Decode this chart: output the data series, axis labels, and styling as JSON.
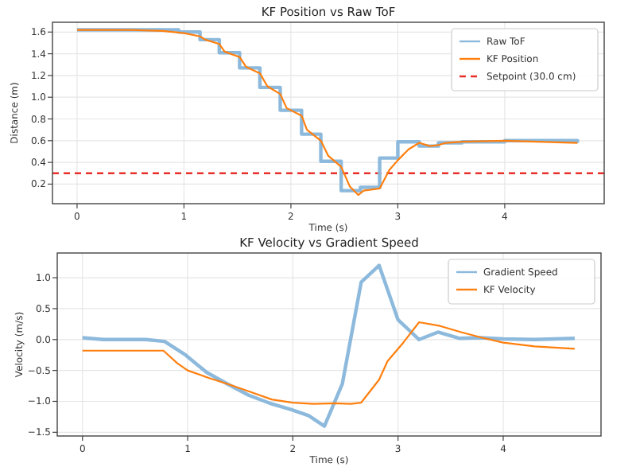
{
  "chart_data": [
    {
      "type": "line",
      "title": "KF Position vs Raw ToF",
      "xlabel": "Time (s)",
      "ylabel": "Distance (m)",
      "xlim": [
        -0.23,
        4.93
      ],
      "ylim": [
        0.02,
        1.69
      ],
      "xticks": [
        0,
        1,
        2,
        3,
        4
      ],
      "yticks": [
        {
          "value": 0.2,
          "label": "0.2"
        },
        {
          "value": 0.4,
          "label": "0.4"
        },
        {
          "value": 0.6,
          "label": "0.6"
        },
        {
          "value": 0.8,
          "label": "0.8"
        },
        {
          "value": 1.0,
          "label": "1.0"
        },
        {
          "value": 1.2,
          "label": "1.2"
        },
        {
          "value": 1.4,
          "label": "1.4"
        },
        {
          "value": 1.6,
          "label": "1.6"
        }
      ],
      "grid": true,
      "legend": "top right",
      "series": [
        {
          "name": "Raw ToF",
          "type": "step",
          "color": "#8cb9dc",
          "x": [
            0,
            0.95,
            1.15,
            1.33,
            1.52,
            1.71,
            1.9,
            2.1,
            2.28,
            2.47,
            2.65,
            2.83,
            3.0,
            3.2,
            3.38,
            3.6,
            4.0,
            4.68
          ],
          "values": [
            1.62,
            1.6,
            1.53,
            1.41,
            1.27,
            1.09,
            0.88,
            0.66,
            0.41,
            0.14,
            0.17,
            0.44,
            0.59,
            0.55,
            0.58,
            0.59,
            0.6,
            0.58
          ]
        },
        {
          "name": "KF Position",
          "color": "#ff7f0e",
          "x": [
            0,
            0.5,
            0.8,
            1.0,
            1.15,
            1.2,
            1.33,
            1.38,
            1.52,
            1.58,
            1.71,
            1.78,
            1.9,
            1.96,
            2.1,
            2.15,
            2.28,
            2.35,
            2.47,
            2.55,
            2.63,
            2.68,
            2.83,
            2.92,
            3.0,
            3.1,
            3.2,
            3.3,
            3.38,
            3.45,
            3.6,
            4.0,
            4.68
          ],
          "values": [
            1.62,
            1.62,
            1.61,
            1.59,
            1.56,
            1.53,
            1.49,
            1.42,
            1.37,
            1.28,
            1.22,
            1.1,
            1.03,
            0.9,
            0.83,
            0.7,
            0.6,
            0.46,
            0.36,
            0.18,
            0.1,
            0.14,
            0.16,
            0.33,
            0.42,
            0.52,
            0.58,
            0.55,
            0.56,
            0.58,
            0.59,
            0.6,
            0.58
          ]
        }
      ],
      "ref_lines": [
        {
          "axis": "y",
          "value": 0.3,
          "label": "Setpoint (30.0 cm)",
          "color": "#e8302a",
          "line_style": "dashed"
        }
      ]
    },
    {
      "type": "line",
      "title": "KF Velocity vs Gradient Speed",
      "xlabel": "Time (s)",
      "ylabel": "Velocity (m/s)",
      "xlim": [
        -0.24,
        4.93
      ],
      "ylim": [
        -1.56,
        1.4
      ],
      "xticks": [
        0,
        1,
        2,
        3,
        4
      ],
      "yticks": [
        {
          "value": -1.5,
          "label": "−1.5"
        },
        {
          "value": -1.0,
          "label": "−1.0"
        },
        {
          "value": -0.5,
          "label": "−0.5"
        },
        {
          "value": 0,
          "label": "0.0"
        },
        {
          "value": 0.5,
          "label": "0.5"
        },
        {
          "value": 1.0,
          "label": "1.0"
        }
      ],
      "grid": true,
      "legend": "top right",
      "series": [
        {
          "name": "Gradient Speed",
          "color": "#8cb9dc",
          "x": [
            0,
            0.2,
            0.6,
            0.78,
            0.98,
            1.18,
            1.38,
            1.58,
            1.78,
            1.98,
            2.15,
            2.3,
            2.47,
            2.65,
            2.82,
            3.0,
            3.2,
            3.38,
            3.58,
            3.78,
            4.0,
            4.3,
            4.68
          ],
          "values": [
            0.03,
            0,
            0,
            -0.03,
            -0.25,
            -0.53,
            -0.72,
            -0.9,
            -1.03,
            -1.13,
            -1.23,
            -1.4,
            -0.72,
            0.93,
            1.2,
            0.32,
            0,
            0.12,
            0.02,
            0.03,
            0.01,
            0,
            0.02
          ]
        },
        {
          "name": "KF Velocity",
          "color": "#ff7f0e",
          "x": [
            0,
            0.77,
            0.9,
            1.0,
            1.2,
            1.4,
            1.6,
            1.8,
            2.0,
            2.2,
            2.4,
            2.55,
            2.65,
            2.82,
            2.9,
            3.05,
            3.2,
            3.4,
            3.6,
            3.8,
            4.0,
            4.3,
            4.68
          ],
          "values": [
            -0.18,
            -0.18,
            -0.38,
            -0.5,
            -0.62,
            -0.73,
            -0.85,
            -0.97,
            -1.02,
            -1.04,
            -1.03,
            -1.04,
            -1.02,
            -0.65,
            -0.35,
            -0.05,
            0.28,
            0.22,
            0.12,
            0.03,
            -0.05,
            -0.11,
            -0.15
          ]
        }
      ]
    }
  ]
}
